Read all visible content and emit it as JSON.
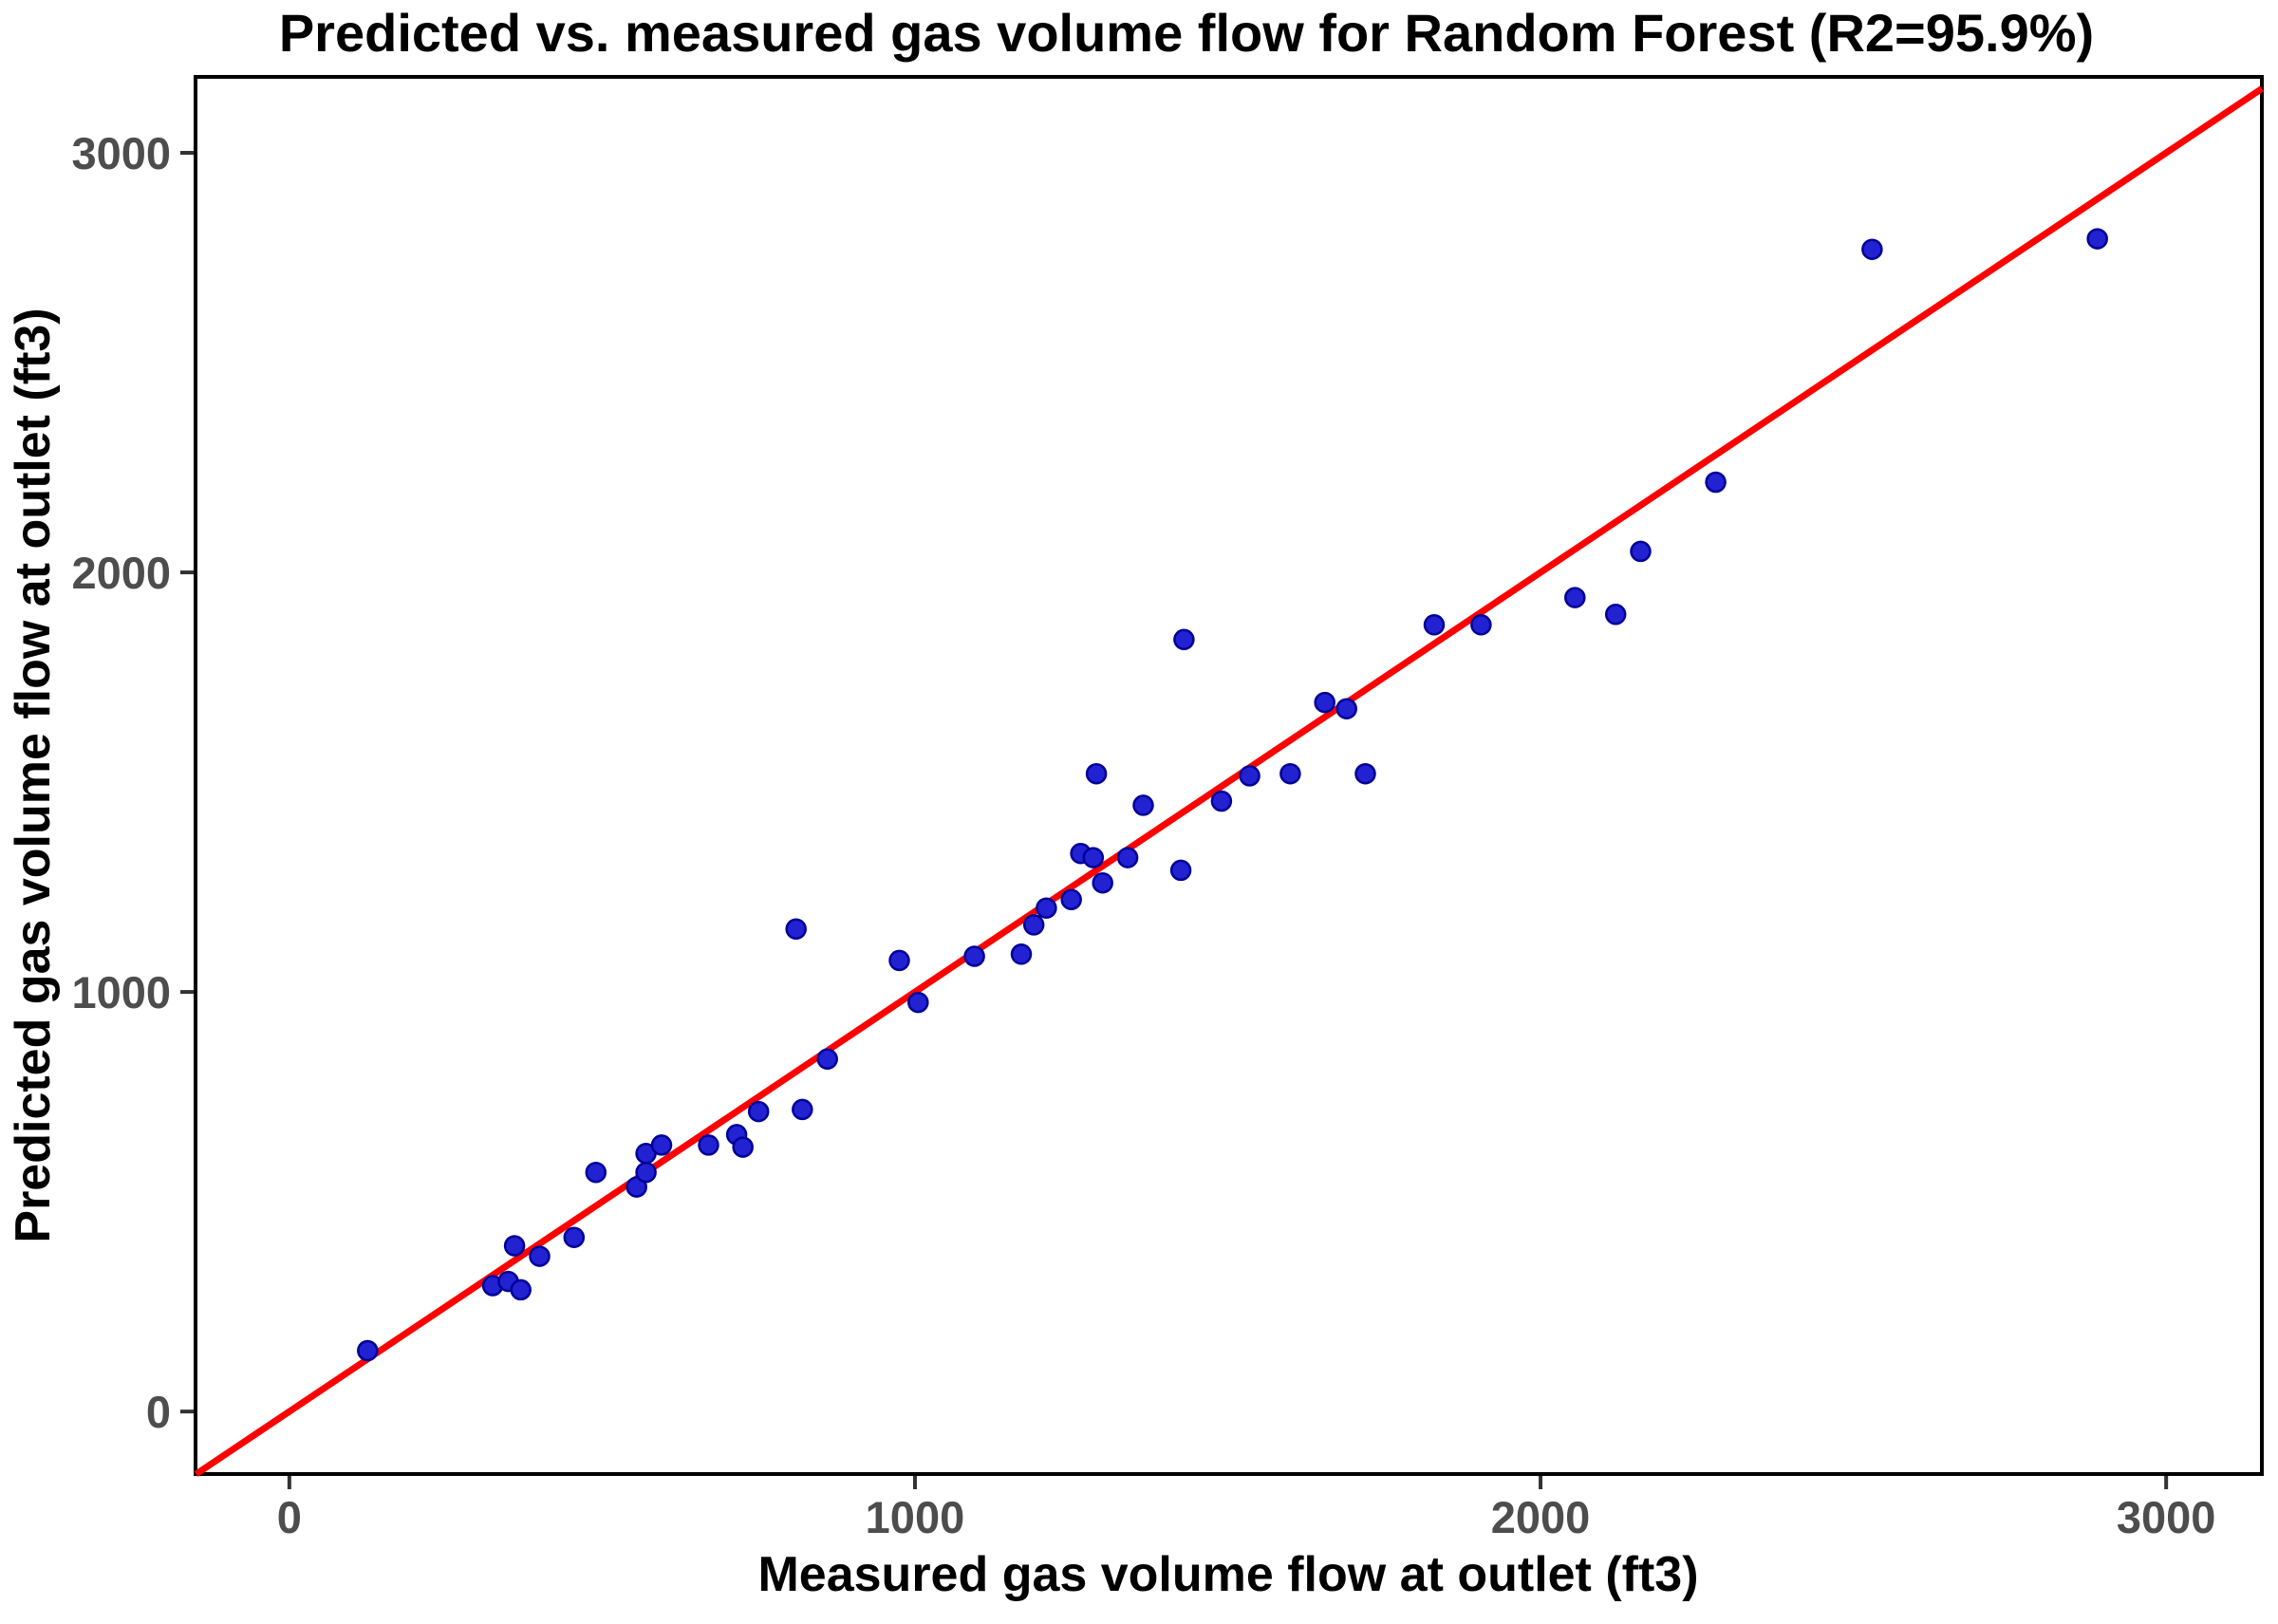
{
  "chart_data": {
    "type": "scatter",
    "title": "Predicted vs. measured gas volume flow for Random Forest (R2=95.9%)",
    "xlabel": "Measured gas volume flow at outlet (ft3)",
    "ylabel": "Predicted gas volume flow at outlet (ft3)",
    "r_squared": "95.9%",
    "model": "Random Forest",
    "x_ticks": [
      0,
      1000,
      2000,
      3000
    ],
    "y_ticks": [
      0,
      1000,
      2000,
      3000
    ],
    "xlim": [
      -150,
      3153
    ],
    "ylim": [
      -149,
      3181
    ],
    "grid": false,
    "legend_position": "none",
    "identity_line": {
      "slope": 1,
      "intercept": 0,
      "color": "#ff0000"
    },
    "point_fill": "#2222d2",
    "point_edge": "#000099",
    "axis_text_color": "#4d4d4d",
    "panel_border_color": "#000000",
    "points": [
      [
        125,
        145
      ],
      [
        325,
        300
      ],
      [
        350,
        310
      ],
      [
        360,
        395
      ],
      [
        370,
        290
      ],
      [
        400,
        370
      ],
      [
        455,
        415
      ],
      [
        490,
        570
      ],
      [
        555,
        535
      ],
      [
        570,
        570
      ],
      [
        570,
        615
      ],
      [
        595,
        635
      ],
      [
        670,
        635
      ],
      [
        715,
        660
      ],
      [
        725,
        630
      ],
      [
        750,
        715
      ],
      [
        810,
        1150
      ],
      [
        820,
        720
      ],
      [
        860,
        840
      ],
      [
        975,
        1075
      ],
      [
        1005,
        975
      ],
      [
        1095,
        1085
      ],
      [
        1170,
        1090
      ],
      [
        1190,
        1160
      ],
      [
        1210,
        1200
      ],
      [
        1250,
        1220
      ],
      [
        1265,
        1330
      ],
      [
        1285,
        1320
      ],
      [
        1290,
        1520
      ],
      [
        1300,
        1260
      ],
      [
        1340,
        1320
      ],
      [
        1365,
        1445
      ],
      [
        1425,
        1290
      ],
      [
        1430,
        1840
      ],
      [
        1490,
        1455
      ],
      [
        1535,
        1515
      ],
      [
        1600,
        1520
      ],
      [
        1655,
        1690
      ],
      [
        1690,
        1675
      ],
      [
        1720,
        1520
      ],
      [
        1830,
        1875
      ],
      [
        1905,
        1875
      ],
      [
        2055,
        1940
      ],
      [
        2120,
        1900
      ],
      [
        2160,
        2050
      ],
      [
        2280,
        2215
      ],
      [
        2530,
        2770
      ],
      [
        2890,
        2795
      ]
    ]
  }
}
